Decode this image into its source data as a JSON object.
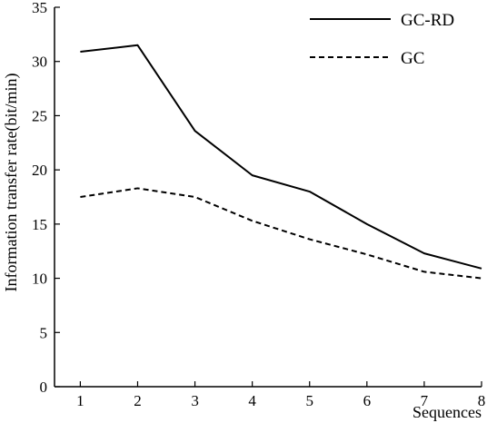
{
  "chart_data": {
    "type": "line",
    "title": "",
    "xlabel": "Sequences",
    "ylabel": "Information transfer rate(bit/min)",
    "x": [
      1,
      2,
      3,
      4,
      5,
      6,
      7,
      8
    ],
    "xticks": [
      "1",
      "2",
      "3",
      "4",
      "5",
      "6",
      "7",
      "8"
    ],
    "yticks": [
      "0",
      "5",
      "10",
      "15",
      "20",
      "25",
      "30",
      "35"
    ],
    "xlim": [
      0.55,
      8
    ],
    "ylim": [
      0,
      35
    ],
    "grid": false,
    "legend_position": "top-right",
    "series": [
      {
        "name": "GC-RD",
        "style": "solid",
        "color": "#000000",
        "values": [
          30.9,
          31.5,
          23.6,
          19.5,
          18.0,
          15.0,
          12.3,
          10.9
        ]
      },
      {
        "name": "GC",
        "style": "dashed",
        "color": "#000000",
        "values": [
          17.5,
          18.3,
          17.5,
          15.3,
          13.6,
          12.2,
          10.6,
          10.0
        ]
      }
    ]
  }
}
